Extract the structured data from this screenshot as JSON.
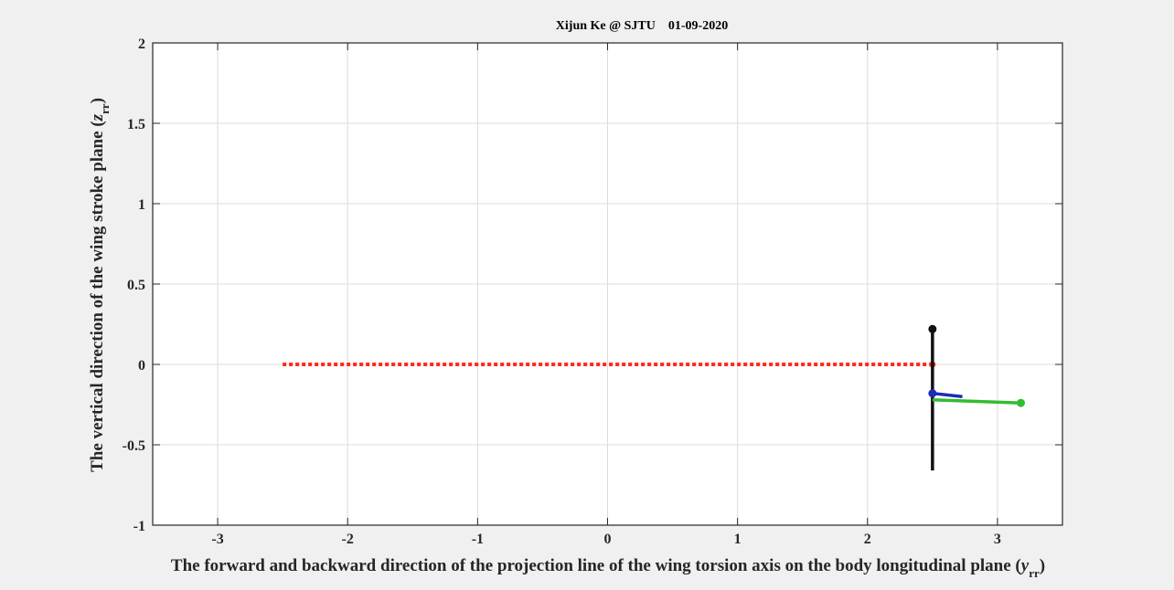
{
  "chart_data": {
    "type": "line",
    "title": "Xijun Ke @ SJTU    01-09-2020",
    "xlabel": {
      "prefix": "The forward and backward direction of the projection line of the wing torsion axis on the body longitudinal plane (",
      "symbol": "y",
      "subscript": "rr",
      "suffix": ")"
    },
    "ylabel": {
      "prefix": "The vertical direction of the wing stroke plane (",
      "symbol": "z",
      "subscript": "rr",
      "suffix": ")"
    },
    "xlim": [
      -3.5,
      3.5
    ],
    "ylim": [
      -1,
      2
    ],
    "xticks": [
      -3,
      -2,
      -1,
      0,
      1,
      2,
      3
    ],
    "yticks": [
      -1,
      -0.5,
      0,
      0.5,
      1,
      1.5,
      2
    ],
    "xtick_labels": [
      "-3",
      "-2",
      "-1",
      "0",
      "1",
      "2",
      "3"
    ],
    "ytick_labels": [
      "-1",
      "-0.5",
      "0",
      "0.5",
      "1",
      "1.5",
      "2"
    ],
    "grid": true,
    "series": [
      {
        "color": "#ff2a1a",
        "style": "dotted",
        "x": [
          -2.5,
          2.5
        ],
        "y": [
          0,
          0
        ],
        "markers": [
          [
            2.5,
            0
          ]
        ]
      },
      {
        "color": "#111111",
        "style": "solid",
        "x": [
          2.5,
          2.5
        ],
        "y": [
          0.22,
          -0.66
        ],
        "markers": [
          [
            2.5,
            0.22
          ]
        ]
      },
      {
        "color": "#1f2ab5",
        "style": "solid",
        "x": [
          2.5,
          2.73
        ],
        "y": [
          -0.18,
          -0.2
        ],
        "markers": [
          [
            2.5,
            -0.18
          ]
        ]
      },
      {
        "color": "#33bb33",
        "style": "solid",
        "x": [
          2.5,
          3.18
        ],
        "y": [
          -0.22,
          -0.24
        ],
        "markers": [
          [
            3.18,
            -0.24
          ]
        ]
      }
    ]
  }
}
